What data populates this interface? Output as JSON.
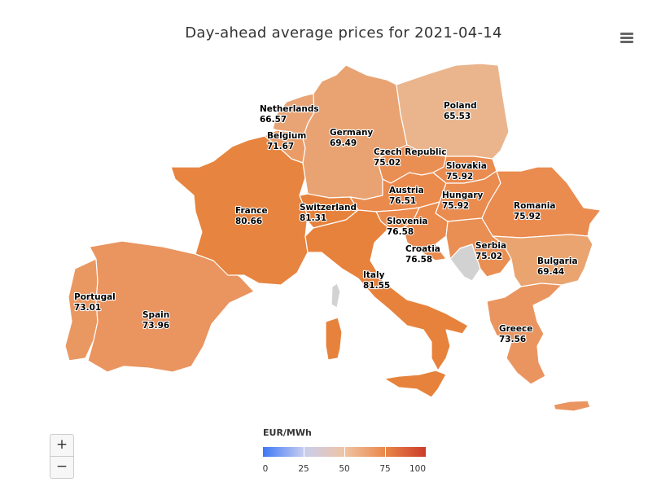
{
  "title": "Day-ahead average prices for 2021-04-14",
  "menu_icon": "hamburger-menu-icon",
  "zoom": {
    "in_label": "+",
    "out_label": "−"
  },
  "legend": {
    "title": "EUR/MWh",
    "min": 0,
    "max": 100,
    "ticks": [
      "0",
      "25",
      "50",
      "75",
      "100"
    ],
    "stops": [
      "#3d78f5",
      "#c7cdf0",
      "#efc4a4",
      "#ea884a",
      "#cc3b2b"
    ]
  },
  "other_land_color": "#d2d2d2",
  "countries": [
    {
      "name": "Netherlands",
      "value": "66.57",
      "color": "#e9a475"
    },
    {
      "name": "Belgium",
      "value": "71.67",
      "color": "#ea9b66"
    },
    {
      "name": "Germany",
      "value": "69.49",
      "color": "#e9a372"
    },
    {
      "name": "Poland",
      "value": "65.53",
      "color": "#eab58d"
    },
    {
      "name": "Czech Republic",
      "value": "75.02",
      "color": "#ea8f54"
    },
    {
      "name": "Slovakia",
      "value": "75.92",
      "color": "#ea8b4f"
    },
    {
      "name": "Austria",
      "value": "76.51",
      "color": "#ea8a4c"
    },
    {
      "name": "Hungary",
      "value": "75.92",
      "color": "#ea8b4f"
    },
    {
      "name": "Romania",
      "value": "75.92",
      "color": "#ea8b4f"
    },
    {
      "name": "France",
      "value": "80.66",
      "color": "#e7843f"
    },
    {
      "name": "Switzerland",
      "value": "81.31",
      "color": "#e7823c"
    },
    {
      "name": "Slovenia",
      "value": "76.58",
      "color": "#ea8a4c"
    },
    {
      "name": "Croatia",
      "value": "76.58",
      "color": "#ea8a4c"
    },
    {
      "name": "Serbia",
      "value": "75.02",
      "color": "#ea8f54"
    },
    {
      "name": "Bulgaria",
      "value": "69.44",
      "color": "#eaa46f"
    },
    {
      "name": "Italy",
      "value": "81.55",
      "color": "#e7823c"
    },
    {
      "name": "Portugal",
      "value": "73.01",
      "color": "#ea9862"
    },
    {
      "name": "Spain",
      "value": "73.96",
      "color": "#ea9460"
    },
    {
      "name": "Greece",
      "value": "73.56",
      "color": "#ea9560"
    }
  ]
}
